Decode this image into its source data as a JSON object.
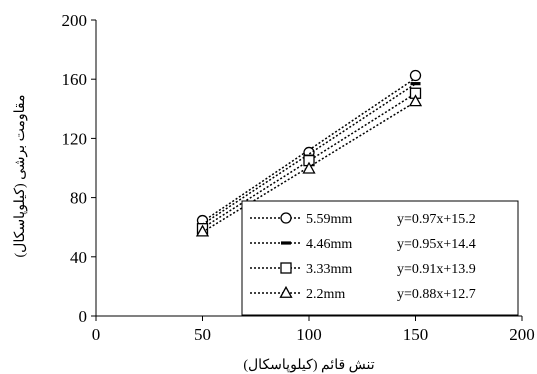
{
  "chart_data": {
    "type": "scatter",
    "title": "",
    "xlabel": "تنش قائم (کیلوپاسکال)",
    "ylabel": "مقاومت برشی (کیلوپاسکال)",
    "xlim": [
      0,
      200
    ],
    "ylim": [
      0,
      200
    ],
    "xticks": [
      "0",
      "50",
      "100",
      "150",
      "200"
    ],
    "yticks": [
      "0",
      "40",
      "80",
      "120",
      "160",
      "200"
    ],
    "grid": false,
    "legend_position": "bottom-right",
    "series": [
      {
        "name": "5.59mm",
        "equation": "y=0.97x+15.2",
        "marker": "circle",
        "x": [
          50,
          100,
          150
        ],
        "y": [
          64.5,
          110.5,
          162.5
        ],
        "trend": {
          "slope": 0.97,
          "intercept": 15.2
        }
      },
      {
        "name": "4.46mm",
        "equation": "y=0.95x+14.4",
        "marker": "dash",
        "x": [
          50,
          100,
          150
        ],
        "y": [
          61.5,
          108,
          157
        ],
        "trend": {
          "slope": 0.95,
          "intercept": 14.4
        }
      },
      {
        "name": "3.33mm",
        "equation": "y=0.91x+13.9",
        "marker": "square",
        "x": [
          50,
          100,
          150
        ],
        "y": [
          59,
          105,
          150.5
        ],
        "trend": {
          "slope": 0.91,
          "intercept": 13.9
        }
      },
      {
        "name": "2.2mm",
        "equation": "y=0.88x+12.7",
        "marker": "triangle",
        "x": [
          50,
          100,
          150
        ],
        "y": [
          57,
          99.5,
          145
        ],
        "trend": {
          "slope": 0.88,
          "intercept": 12.7
        }
      }
    ]
  }
}
